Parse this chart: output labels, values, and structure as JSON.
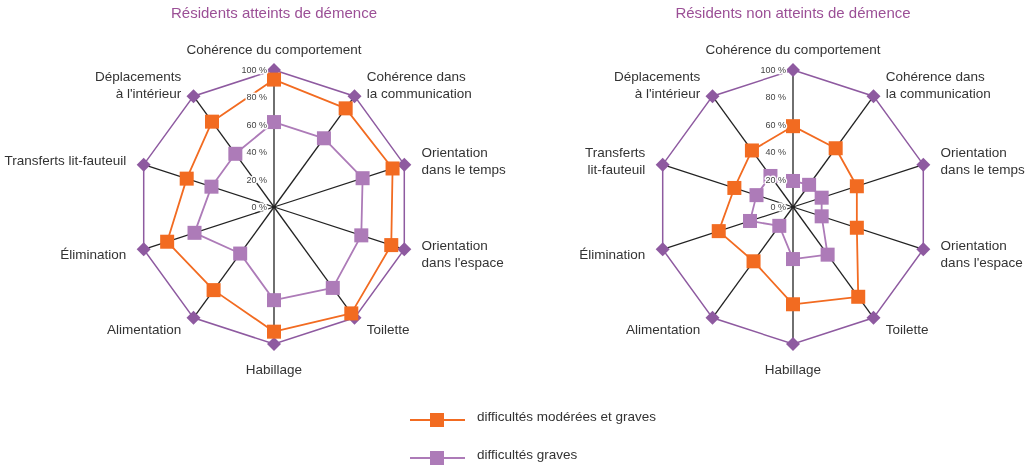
{
  "chart_data": [
    {
      "type": "radar",
      "title": "Résidents atteints de démence",
      "categories": [
        "Cohérence du comportement",
        "Cohérence dans\nla communication",
        "Orientation\ndans le temps",
        "Orientation\ndans l'espace",
        "Toilette",
        "Habillage",
        "Alimentation",
        "Élimination",
        "Transferts lit-fauteuil",
        "Déplacements\nà l'intérieur"
      ],
      "series": [
        {
          "name": "difficultés modérées et graves",
          "color": "#f26b21",
          "values": [
            93,
            89,
            91,
            90,
            96,
            91,
            75,
            82,
            67,
            77
          ]
        },
        {
          "name": "difficultés graves",
          "color": "#ad7bb8",
          "values": [
            62,
            62,
            68,
            67,
            73,
            68,
            42,
            61,
            48,
            48
          ]
        }
      ],
      "ylim": [
        0,
        100
      ],
      "yticks": [
        {
          "value": 0,
          "label": "0 %"
        },
        {
          "value": 20,
          "label": "20 %"
        },
        {
          "value": 40,
          "label": "40 %"
        },
        {
          "value": 60,
          "label": "60 %"
        },
        {
          "value": 80,
          "label": "80 %"
        },
        {
          "value": 100,
          "label": "100 %"
        }
      ],
      "marker": "square",
      "legend": "bottom"
    },
    {
      "type": "radar",
      "title": "Résidents non atteints de démence",
      "categories": [
        "Cohérence du comportement",
        "Cohérence dans\nla communication",
        "Orientation\ndans le temps",
        "Orientation\ndans l'espace",
        "Toilette",
        "Habillage",
        "Alimentation",
        "Élimination",
        "Transferts\nlit-fauteuil",
        "Déplacements\nà l'intérieur"
      ],
      "series": [
        {
          "name": "difficultés modérées et graves",
          "color": "#f26b21",
          "values": [
            59,
            53,
            49,
            49,
            81,
            71,
            49,
            57,
            45,
            51
          ]
        },
        {
          "name": "difficultés graves",
          "color": "#ad7bb8",
          "values": [
            19,
            20,
            22,
            22,
            43,
            38,
            17,
            33,
            28,
            28
          ]
        }
      ],
      "ylim": [
        0,
        100
      ],
      "yticks": [
        {
          "value": 0,
          "label": "0 %"
        },
        {
          "value": 20,
          "label": "20 %"
        },
        {
          "value": 40,
          "label": "40 %"
        },
        {
          "value": 60,
          "label": "60 %"
        },
        {
          "value": 80,
          "label": "80 %"
        },
        {
          "value": 100,
          "label": "100 %"
        }
      ],
      "marker": "square",
      "legend": "bottom"
    }
  ]
}
